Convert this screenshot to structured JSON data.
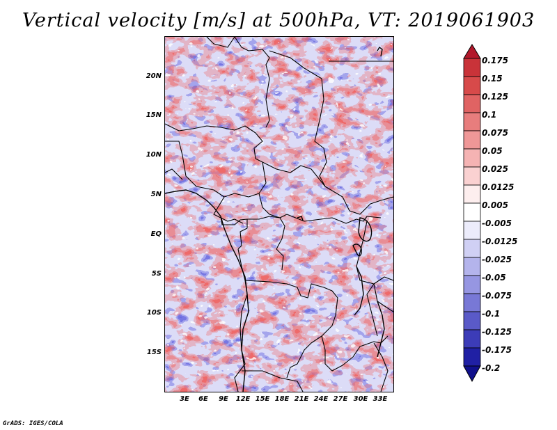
{
  "title": "Vertical velocity [m/s] at 500hPa, VT: 2019061903",
  "credit": "GrADS: IGES/COLA",
  "map": {
    "region": "Central Africa",
    "lat_labels": [
      "20N",
      "15N",
      "10N",
      "5N",
      "EQ",
      "5S",
      "10S",
      "15S"
    ],
    "lon_labels": [
      "3E",
      "6E",
      "9E",
      "12E",
      "15E",
      "18E",
      "21E",
      "24E",
      "27E",
      "30E",
      "33E"
    ]
  },
  "colorbar": {
    "labels": [
      "0.175",
      "0.15",
      "0.125",
      "0.1",
      "0.075",
      "0.05",
      "0.025",
      "0.0125",
      "0.005",
      "-0.005",
      "-0.0125",
      "-0.025",
      "-0.05",
      "-0.075",
      "-0.1",
      "-0.125",
      "-0.175",
      "-0.2"
    ],
    "colors": [
      "#b2182b",
      "#c93339",
      "#d74a4a",
      "#e06363",
      "#e87d7d",
      "#ef9797",
      "#f5b3b3",
      "#fad1d1",
      "#fdeeee",
      "#ffffff",
      "#ececfb",
      "#d0d0f4",
      "#b4b4ec",
      "#9696e2",
      "#7878d6",
      "#5a5ac8",
      "#3c3cb8",
      "#2020a4",
      "#10108c"
    ]
  }
}
